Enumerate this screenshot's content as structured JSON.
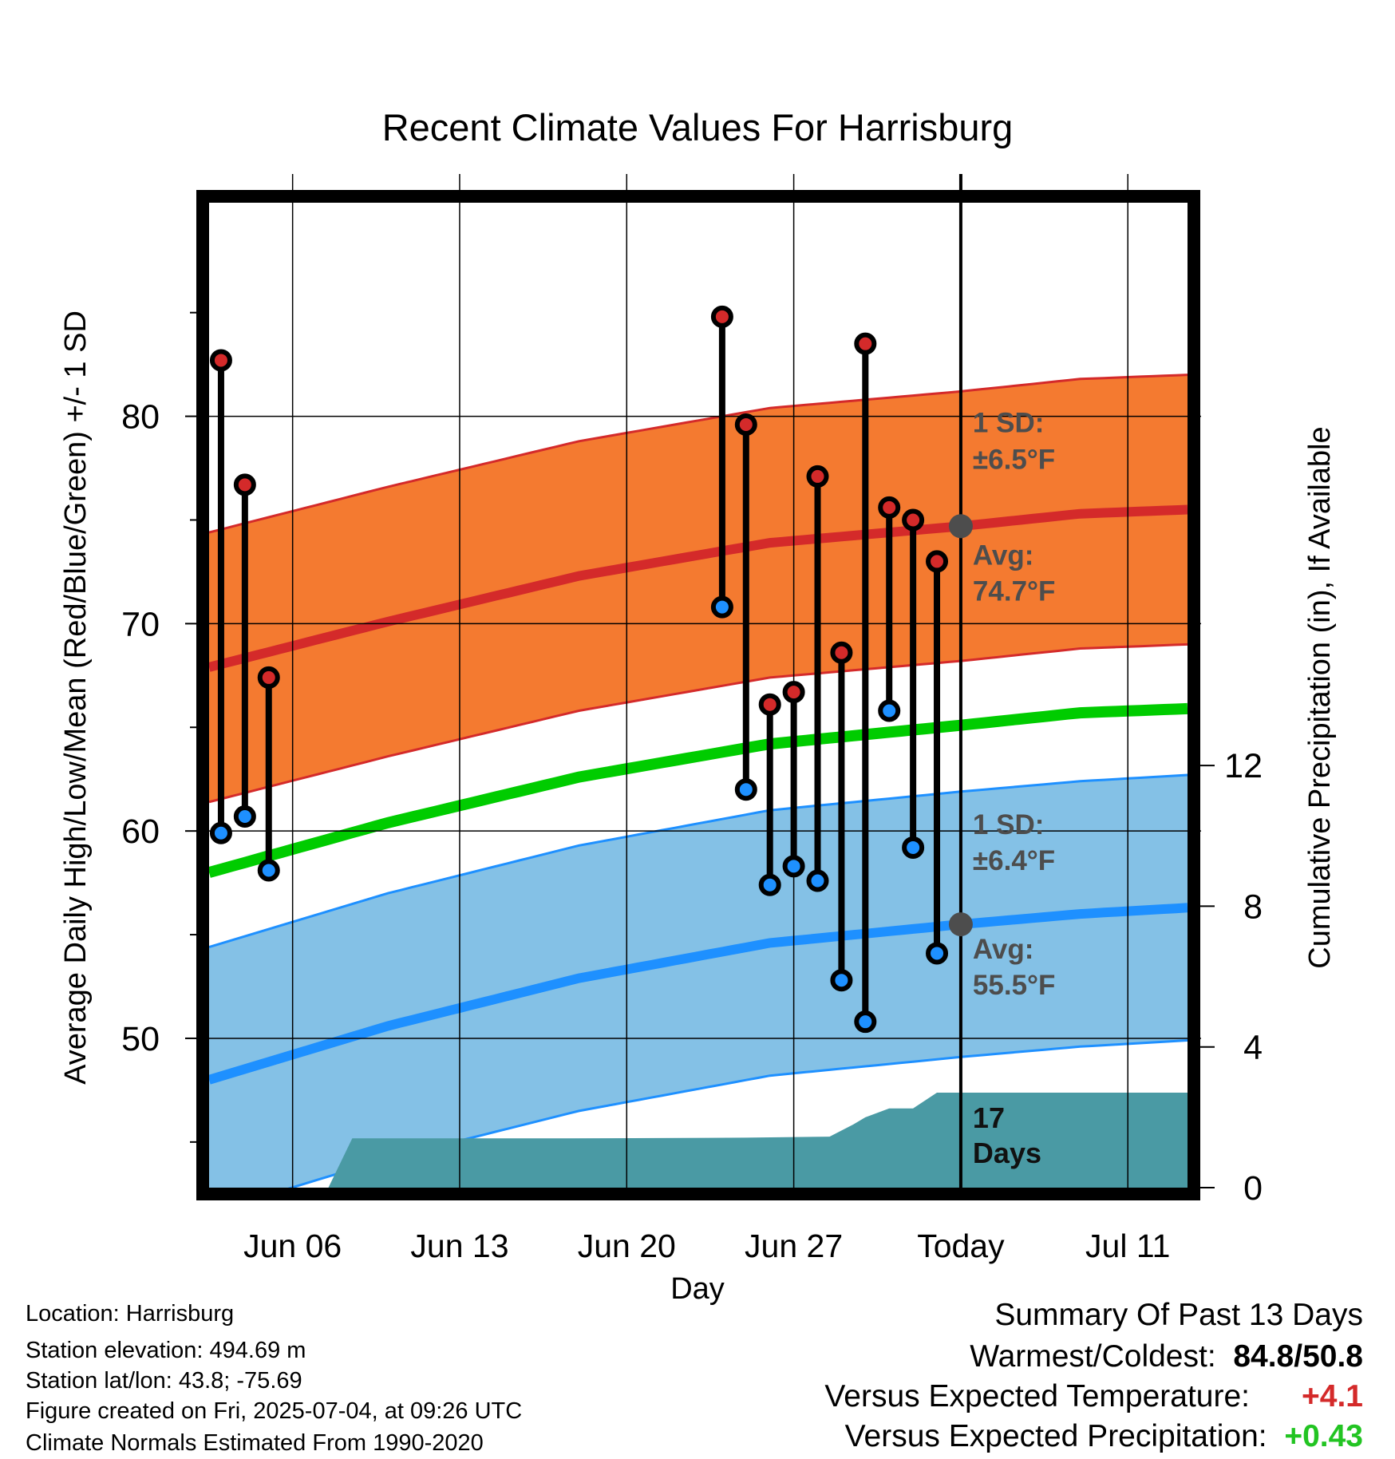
{
  "chart_data": {
    "type": "line",
    "title": "Recent Climate Values For Harrisburg",
    "xlabel": "Day",
    "ylabel_left": "Average Daily High/Low/Mean (Red/Blue/Green) +/- 1 SD",
    "ylabel_right": "Cumulative Precipitation (in), If Available",
    "x_range_days": [
      -31.5,
      9.5
    ],
    "y_left_range": [
      42.8,
      90.3
    ],
    "y_right_range": [
      0,
      28
    ],
    "x_ticks": [
      {
        "day": -28,
        "label": "Jun 06"
      },
      {
        "day": -21,
        "label": "Jun 13"
      },
      {
        "day": -14,
        "label": "Jun 20"
      },
      {
        "day": -7,
        "label": "Jun 27"
      },
      {
        "day": 0,
        "label": "Today"
      },
      {
        "day": 7,
        "label": "Jul 11"
      }
    ],
    "y_left_ticks": [
      50,
      60,
      70,
      80
    ],
    "y_left_minor_ticks": [
      45,
      55,
      65,
      75,
      85
    ],
    "y_right_ticks": [
      0,
      4,
      8,
      12
    ],
    "normals": {
      "day": [
        -31.5,
        -24,
        -16,
        -8,
        0,
        5,
        9.5
      ],
      "high_mean": [
        67.9,
        70.1,
        72.3,
        73.9,
        74.7,
        75.3,
        75.5
      ],
      "high_sd": 6.5,
      "low_mean": [
        48.0,
        50.6,
        52.9,
        54.6,
        55.5,
        56.0,
        56.3
      ],
      "low_sd": 6.4,
      "mean": [
        58.0,
        60.4,
        62.6,
        64.2,
        65.1,
        65.7,
        65.9
      ]
    },
    "observations": [
      {
        "day": -31,
        "high": 82.7,
        "low": 59.9
      },
      {
        "day": -30,
        "high": 76.7,
        "low": 60.7
      },
      {
        "day": -29,
        "high": 67.4,
        "low": 58.1
      },
      {
        "day": -10,
        "high": 84.8,
        "low": 70.8
      },
      {
        "day": -9,
        "high": 79.6,
        "low": 62.0
      },
      {
        "day": -8,
        "high": 66.1,
        "low": 57.4
      },
      {
        "day": -7,
        "high": 66.7,
        "low": 58.3
      },
      {
        "day": -6,
        "high": 77.1,
        "low": 57.6
      },
      {
        "day": -5,
        "high": 68.6,
        "low": 52.8
      },
      {
        "day": -4,
        "high": 83.5,
        "low": 50.8
      },
      {
        "day": -3,
        "high": 75.6,
        "low": 65.8
      },
      {
        "day": -2,
        "high": 75.0,
        "low": 59.2
      },
      {
        "day": -1,
        "high": 73.0,
        "low": 54.1
      }
    ],
    "precipitation_cumulative": {
      "day": [
        -31.5,
        -26.5,
        -25.5,
        -16.5,
        -9,
        -5.5,
        -4.5,
        -4,
        -3,
        -2,
        -1,
        9.5
      ],
      "inches": [
        0,
        0,
        1.4,
        1.4,
        1.42,
        1.45,
        1.8,
        2.0,
        2.25,
        2.25,
        2.7,
        2.7
      ]
    },
    "today_markers": [
      {
        "value": 74.7,
        "series": "high"
      },
      {
        "value": 55.5,
        "series": "low"
      }
    ],
    "annotations": {
      "high_sd_label": "1 SD:",
      "high_sd_value": "±6.5°F",
      "high_avg_label": "Avg:",
      "high_avg_value": "74.7°F",
      "low_sd_label": "1 SD:",
      "low_sd_value": "±6.4°F",
      "low_avg_label": "Avg:",
      "low_avg_value": "55.5°F",
      "days_count": "17",
      "days_label": "Days"
    },
    "colors": {
      "high_band": "#f47a30",
      "high_line": "#d42a2a",
      "low_band": "#84c1e6",
      "low_line": "#1e90ff",
      "mean_line": "#00cc00",
      "precip": "#4a9aa4",
      "annotation": "#4d4d4d"
    }
  },
  "info": {
    "location": "Location: Harrisburg",
    "elevation": "Station elevation: 494.69 m",
    "latlon": "Station lat/lon: 43.8; -75.69",
    "created": "Figure created on Fri, 2025-07-04, at 09:26 UTC",
    "normals": "Climate Normals Estimated From 1990-2020"
  },
  "summary": {
    "title": "Summary Of Past 13 Days",
    "warm_cold_label": "Warmest/Coldest:",
    "warm_cold_value": "84.8/50.8",
    "temp_label": "Versus Expected Temperature:",
    "temp_value": "+4.1",
    "precip_label": "Versus Expected Precipitation:",
    "precip_value": "+0.43"
  }
}
